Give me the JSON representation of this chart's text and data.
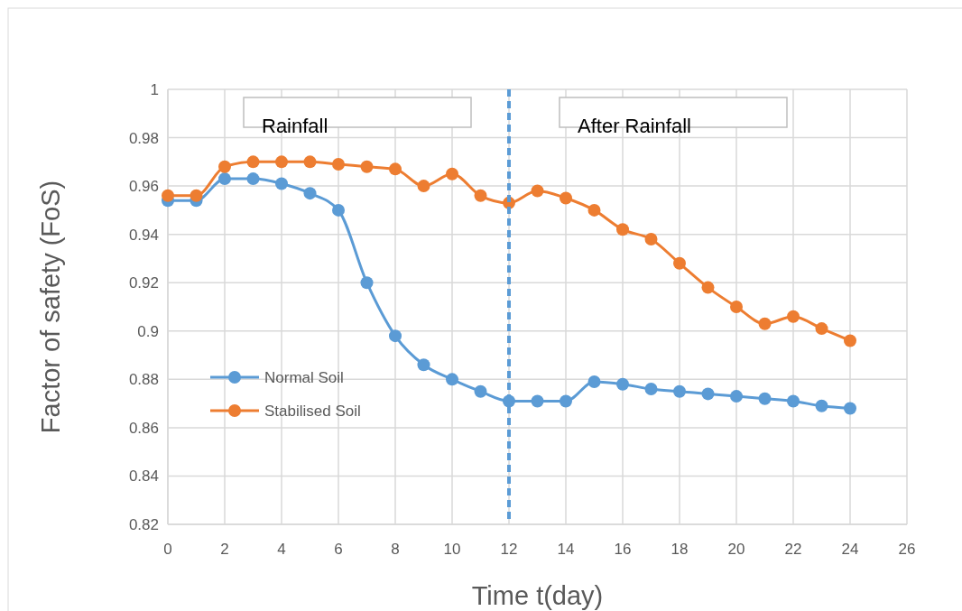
{
  "chart_data": {
    "type": "line",
    "xlabel": "Time t(day)",
    "ylabel": "Factor of safety (FoS)",
    "x": [
      0,
      1,
      2,
      3,
      4,
      5,
      6,
      7,
      8,
      9,
      10,
      11,
      12,
      13,
      14,
      15,
      16,
      17,
      18,
      19,
      20,
      21,
      22,
      23,
      24
    ],
    "series": [
      {
        "name": "Normal Soil",
        "color": "#5b9bd5",
        "values": [
          0.954,
          0.954,
          0.963,
          0.963,
          0.961,
          0.957,
          0.95,
          0.92,
          0.898,
          0.886,
          0.88,
          0.875,
          0.871,
          0.871,
          0.871,
          0.879,
          0.878,
          0.876,
          0.875,
          0.874,
          0.873,
          0.872,
          0.871,
          0.869,
          0.868
        ]
      },
      {
        "name": "Stabilised Soil",
        "color": "#ed7d31",
        "values": [
          0.956,
          0.956,
          0.968,
          0.97,
          0.97,
          0.97,
          0.969,
          0.968,
          0.967,
          0.96,
          0.965,
          0.956,
          0.953,
          0.958,
          0.955,
          0.95,
          0.942,
          0.938,
          0.928,
          0.918,
          0.91,
          0.903,
          0.906,
          0.901,
          0.896
        ]
      }
    ],
    "xlim": [
      0,
      26
    ],
    "xticks": [
      0,
      2,
      4,
      6,
      8,
      10,
      12,
      14,
      16,
      18,
      20,
      22,
      24,
      26
    ],
    "ylim": [
      0.82,
      1
    ],
    "yticks": [
      0.82,
      0.84,
      0.86,
      0.88,
      0.9,
      0.92,
      0.94,
      0.96,
      0.98,
      1
    ],
    "ref_lines": [
      {
        "axis": "x",
        "value": 12,
        "color": "#5b9bd5",
        "line_style": "dashed"
      }
    ],
    "annotations": [
      "Rainfall",
      "After Rainfall"
    ],
    "grid": true,
    "legend": "left",
    "marker": "circle",
    "line_style": "solid"
  }
}
